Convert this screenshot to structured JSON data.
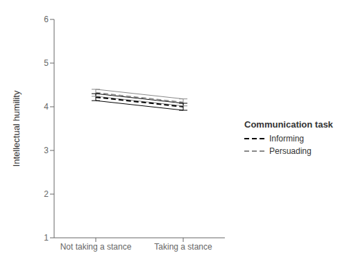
{
  "chart_data": {
    "type": "line",
    "ylabel": "Intellectual humility",
    "categories": [
      "Not taking a stance",
      "Taking a stance"
    ],
    "series": [
      {
        "name": "Informing",
        "color": "#000000",
        "line_style": "dashed",
        "values": [
          4.22,
          4.0
        ],
        "ci_upper": [
          4.3,
          4.08
        ],
        "ci_lower": [
          4.14,
          3.92
        ]
      },
      {
        "name": "Persuading",
        "color": "#888888",
        "line_style": "dashed",
        "values": [
          4.32,
          4.1
        ],
        "ci_upper": [
          4.4,
          4.18
        ],
        "ci_lower": [
          4.24,
          4.02
        ]
      }
    ],
    "ylim": [
      1,
      6
    ],
    "yticks": [
      1,
      2,
      3,
      4,
      5,
      6
    ],
    "grid": false,
    "legend": "right",
    "legend_title": "Communication task"
  }
}
